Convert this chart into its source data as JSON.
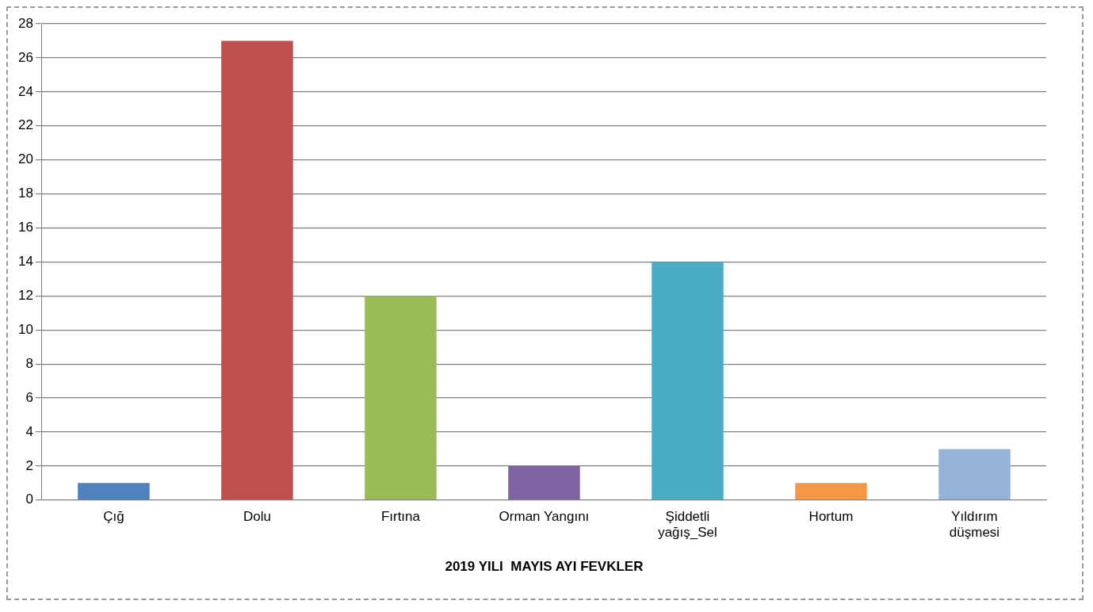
{
  "chart_data": {
    "type": "bar",
    "xlabel": "2019 YILI  MAYIS AYI FEVKLER",
    "categories": [
      "Çığ",
      "Dolu",
      "Fırtına",
      "Orman Yangını",
      "Şiddetli yağış_Sel",
      "Hortum",
      "Yıldırım düşmesi"
    ],
    "values": [
      1,
      27,
      12,
      2,
      14,
      1,
      3
    ],
    "colors": [
      "#4f81bd",
      "#c0504d",
      "#9bbb59",
      "#8064a2",
      "#4bacc6",
      "#f79646",
      "#95b3d7"
    ],
    "ylim": [
      0,
      28
    ],
    "yticks": [
      0,
      2,
      4,
      6,
      8,
      10,
      12,
      14,
      16,
      18,
      20,
      22,
      24,
      26,
      28
    ],
    "grid": "y",
    "legend": false
  }
}
